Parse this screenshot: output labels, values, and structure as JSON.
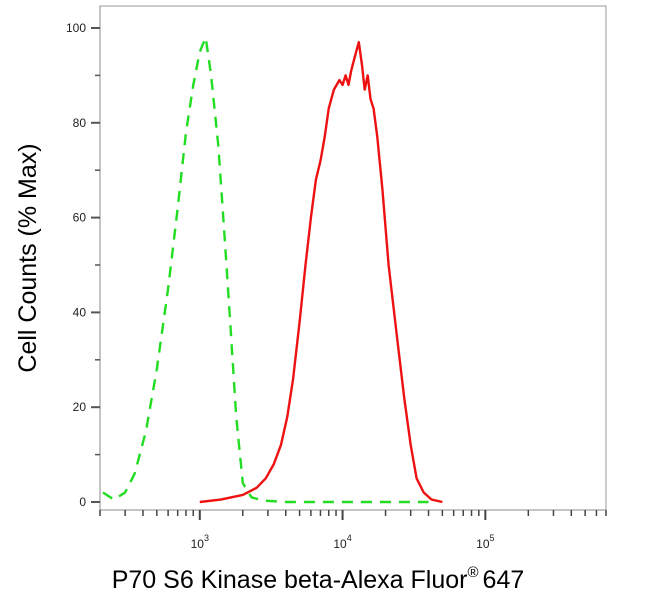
{
  "chart_data": {
    "type": "line",
    "xlabel": "P70 S6 Kinase beta-Alexa Fluor",
    "xlabel_superscript": "®",
    "xlabel_suffix": "647",
    "ylabel": "Cell Counts (% Max)",
    "x_scale": "log",
    "xlim": [
      200,
      700000
    ],
    "ylim": [
      0,
      100
    ],
    "x_ticks": [
      {
        "value": 1000,
        "base": "10",
        "exp": "3"
      },
      {
        "value": 10000,
        "base": "10",
        "exp": "4"
      },
      {
        "value": 100000,
        "base": "10",
        "exp": "5"
      }
    ],
    "y_ticks": [
      "0",
      "20",
      "40",
      "60",
      "80",
      "100"
    ],
    "grid": false,
    "series": [
      {
        "color": "#22dd22",
        "dashed": true,
        "x": [
          210,
          250,
          300,
          350,
          420,
          500,
          600,
          700,
          800,
          900,
          1000,
          1100,
          1200,
          1350,
          1500,
          1650,
          1800,
          2000,
          2300,
          2800,
          4000,
          6000,
          10000,
          20000,
          40000
        ],
        "y": [
          2,
          0.5,
          2,
          6,
          15,
          28,
          45,
          62,
          78,
          88,
          95,
          98,
          90,
          75,
          55,
          36,
          18,
          4,
          1,
          0.3,
          0,
          0,
          0,
          0,
          0
        ]
      },
      {
        "color": "#ee1111",
        "dashed": false,
        "x": [
          1000,
          1400,
          2000,
          2500,
          2900,
          3300,
          3700,
          4100,
          4500,
          5000,
          5500,
          6000,
          6500,
          7000,
          7500,
          8000,
          8700,
          9500,
          10000,
          10500,
          11000,
          11500,
          12200,
          13000,
          13700,
          14300,
          15000,
          15700,
          16500,
          17500,
          19000,
          21000,
          24000,
          27000,
          30000,
          33000,
          37000,
          42000,
          50000
        ],
        "y": [
          0,
          0.5,
          1.5,
          3,
          5,
          8,
          12,
          18,
          26,
          38,
          50,
          60,
          68,
          72,
          77,
          83,
          87,
          89,
          88,
          90,
          88,
          91,
          94,
          97,
          92,
          87,
          90,
          85,
          83,
          77,
          66,
          50,
          35,
          22,
          12,
          5,
          2,
          0.5,
          0
        ]
      }
    ]
  }
}
